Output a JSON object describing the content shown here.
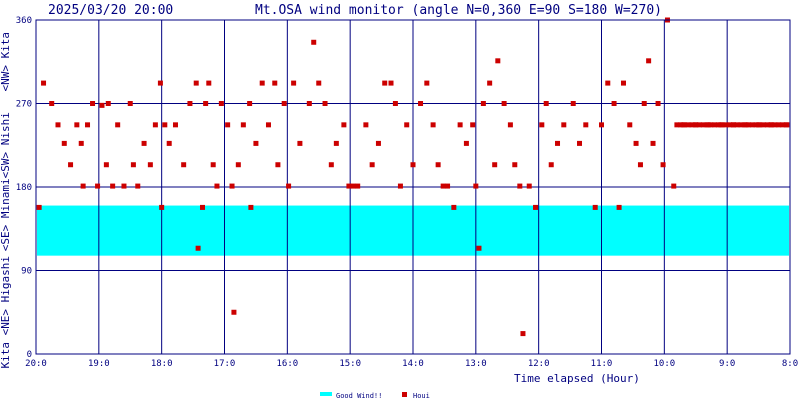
{
  "chart_data": {
    "type": "scatter",
    "timestamp": "2025/03/20 20:00",
    "title": "Mt.OSA wind monitor (angle N=0,360 E=90 S=180 W=270)",
    "xlabel": "Time elapsed (Hour)",
    "x_ticks": [
      "20:0",
      "19:0",
      "18:0",
      "17:0",
      "16:0",
      "15:0",
      "14:0",
      "13:0",
      "12:0",
      "11:0",
      "10:0",
      "9:0",
      "8:0"
    ],
    "x_range_hours_before": [
      0,
      12
    ],
    "y_ticks": [
      "0",
      "90",
      "180",
      "270",
      "360"
    ],
    "ylim": [
      0,
      360
    ],
    "y_direction_labels": [
      "Kita <NE> Higashi",
      "<SE> Minami",
      "<SW> Nishi",
      "<NW> Kita"
    ],
    "grid": true,
    "good_wind": {
      "name": "Good Wind!!",
      "from": 106,
      "to": 160,
      "color": "#00ffff"
    },
    "legend": {
      "placement": "bottom-center",
      "items": [
        {
          "label": "Good Wind!!",
          "color": "#00ffff",
          "kind": "band"
        },
        {
          "label": "Houi",
          "color": "#cc0000",
          "kind": "point"
        }
      ]
    },
    "series": [
      {
        "name": "Houi",
        "color": "#cc0000",
        "points": [
          [
            0.05,
            158
          ],
          [
            0.12,
            292
          ],
          [
            0.25,
            270
          ],
          [
            0.35,
            247
          ],
          [
            0.45,
            227
          ],
          [
            0.55,
            204
          ],
          [
            0.65,
            247
          ],
          [
            0.72,
            227
          ],
          [
            0.75,
            181
          ],
          [
            0.82,
            247
          ],
          [
            0.9,
            270
          ],
          [
            0.98,
            181
          ],
          [
            1.05,
            268
          ],
          [
            1.12,
            204
          ],
          [
            1.15,
            270
          ],
          [
            1.22,
            181
          ],
          [
            1.3,
            247
          ],
          [
            1.4,
            181
          ],
          [
            1.5,
            270
          ],
          [
            1.55,
            204
          ],
          [
            1.62,
            181
          ],
          [
            1.72,
            227
          ],
          [
            1.82,
            204
          ],
          [
            1.9,
            247
          ],
          [
            1.98,
            292
          ],
          [
            2.0,
            158
          ],
          [
            2.05,
            247
          ],
          [
            2.12,
            227
          ],
          [
            2.22,
            247
          ],
          [
            2.35,
            204
          ],
          [
            2.45,
            270
          ],
          [
            2.55,
            292
          ],
          [
            2.58,
            114
          ],
          [
            2.65,
            158
          ],
          [
            2.7,
            270
          ],
          [
            2.75,
            292
          ],
          [
            2.82,
            204
          ],
          [
            2.88,
            181
          ],
          [
            2.95,
            270
          ],
          [
            3.05,
            247
          ],
          [
            3.12,
            181
          ],
          [
            3.15,
            45
          ],
          [
            3.22,
            204
          ],
          [
            3.3,
            247
          ],
          [
            3.4,
            270
          ],
          [
            3.42,
            158
          ],
          [
            3.5,
            227
          ],
          [
            3.6,
            292
          ],
          [
            3.7,
            247
          ],
          [
            3.8,
            292
          ],
          [
            3.85,
            204
          ],
          [
            3.95,
            270
          ],
          [
            4.02,
            181
          ],
          [
            4.1,
            292
          ],
          [
            4.2,
            227
          ],
          [
            4.35,
            270
          ],
          [
            4.42,
            336
          ],
          [
            4.5,
            292
          ],
          [
            4.6,
            270
          ],
          [
            4.7,
            204
          ],
          [
            4.78,
            227
          ],
          [
            4.9,
            247
          ],
          [
            4.98,
            181
          ],
          [
            5.05,
            181
          ],
          [
            5.12,
            181
          ],
          [
            5.25,
            247
          ],
          [
            5.35,
            204
          ],
          [
            5.45,
            227
          ],
          [
            5.55,
            292
          ],
          [
            5.65,
            292
          ],
          [
            5.72,
            270
          ],
          [
            5.8,
            181
          ],
          [
            5.9,
            247
          ],
          [
            6.0,
            204
          ],
          [
            6.12,
            270
          ],
          [
            6.22,
            292
          ],
          [
            6.32,
            247
          ],
          [
            6.4,
            204
          ],
          [
            6.48,
            181
          ],
          [
            6.55,
            181
          ],
          [
            6.65,
            158
          ],
          [
            6.75,
            247
          ],
          [
            6.85,
            227
          ],
          [
            6.95,
            247
          ],
          [
            7.0,
            181
          ],
          [
            7.05,
            114
          ],
          [
            7.12,
            270
          ],
          [
            7.22,
            292
          ],
          [
            7.3,
            204
          ],
          [
            7.35,
            316
          ],
          [
            7.45,
            270
          ],
          [
            7.55,
            247
          ],
          [
            7.62,
            204
          ],
          [
            7.7,
            181
          ],
          [
            7.75,
            22
          ],
          [
            7.85,
            181
          ],
          [
            7.95,
            158
          ],
          [
            8.05,
            247
          ],
          [
            8.12,
            270
          ],
          [
            8.2,
            204
          ],
          [
            8.3,
            227
          ],
          [
            8.4,
            247
          ],
          [
            8.55,
            270
          ],
          [
            8.65,
            227
          ],
          [
            8.75,
            247
          ],
          [
            8.9,
            158
          ],
          [
            9.0,
            247
          ],
          [
            9.1,
            292
          ],
          [
            9.2,
            270
          ],
          [
            9.28,
            158
          ],
          [
            9.35,
            292
          ],
          [
            9.45,
            247
          ],
          [
            9.55,
            227
          ],
          [
            9.62,
            204
          ],
          [
            9.68,
            270
          ],
          [
            9.75,
            316
          ],
          [
            9.82,
            227
          ],
          [
            9.9,
            270
          ],
          [
            9.98,
            204
          ],
          [
            10.05,
            360
          ],
          [
            10.15,
            181
          ],
          [
            10.3,
            247
          ],
          [
            10.5,
            247
          ],
          [
            10.7,
            247
          ],
          [
            10.9,
            247
          ],
          [
            11.1,
            247
          ],
          [
            11.3,
            247
          ],
          [
            11.5,
            247
          ],
          [
            11.7,
            247
          ],
          [
            11.95,
            247
          ]
        ]
      }
    ]
  }
}
